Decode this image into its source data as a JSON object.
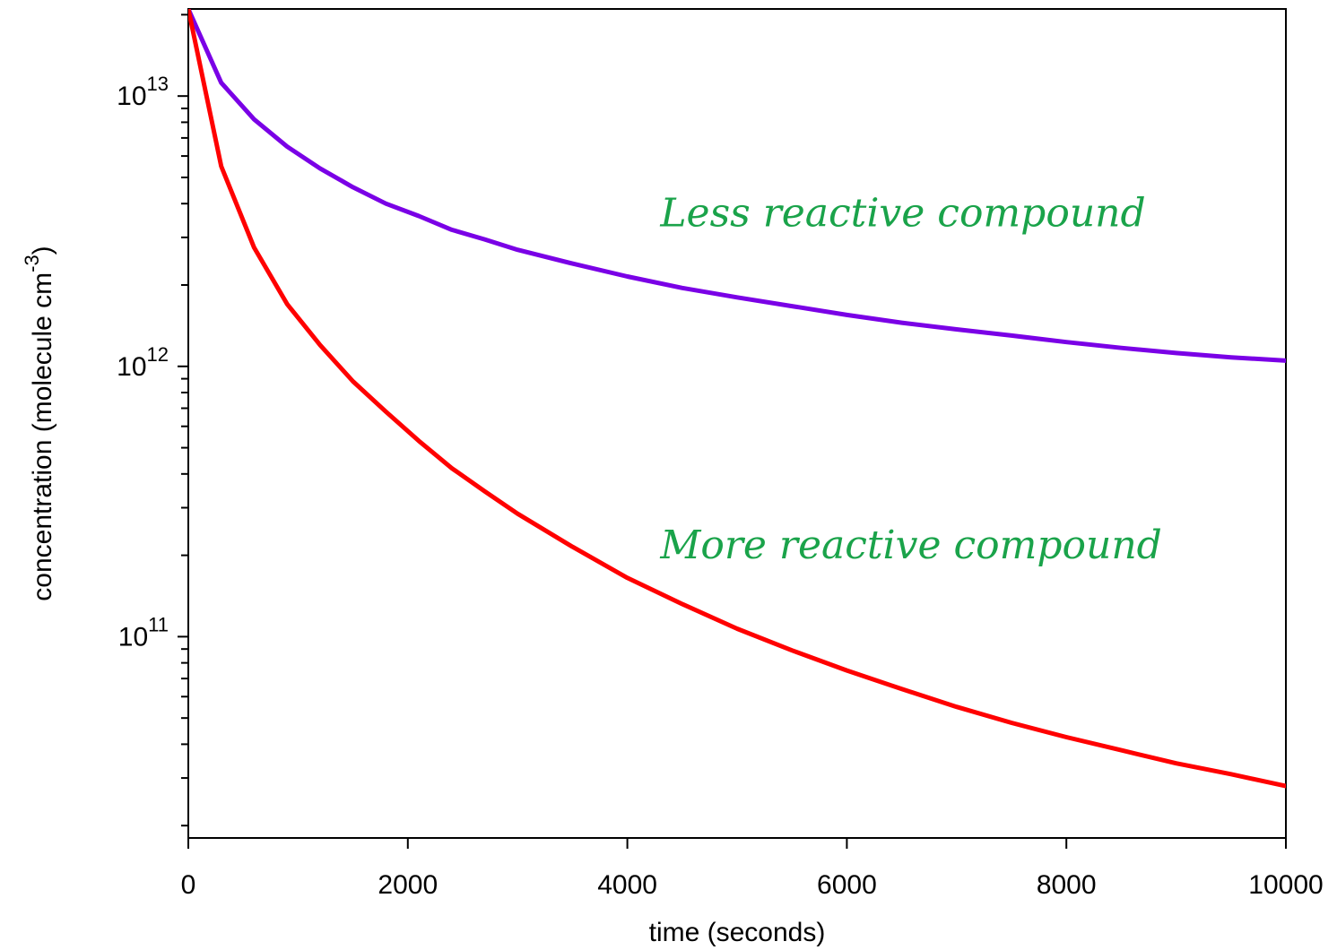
{
  "chart_data": {
    "type": "line",
    "title": "",
    "xlabel": "time (seconds)",
    "ylabel": {
      "text": "concentration (molecule cm",
      "superscript": "-3",
      "suffix": ")"
    },
    "xlim": [
      0,
      10000
    ],
    "ylim": [
      18000000000.0,
      21000000000000.0
    ],
    "y_scale": "log",
    "grid": false,
    "legend": "none",
    "x_ticks": [
      0,
      2000,
      4000,
      6000,
      8000,
      10000
    ],
    "x_tick_labels": [
      "0",
      "2000",
      "4000",
      "6000",
      "8000",
      "10000"
    ],
    "y_major_ticks": [
      {
        "value": 10000000000000.0,
        "base": "10",
        "exponent": "13"
      },
      {
        "value": 1000000000000.0,
        "base": "10",
        "exponent": "12"
      },
      {
        "value": 100000000000.0,
        "base": "10",
        "exponent": "11"
      }
    ],
    "series": [
      {
        "color": "#7a00e6",
        "x": [
          0,
          300,
          600,
          900,
          1200,
          1500,
          1800,
          2100,
          2400,
          2700,
          3000,
          3500,
          4000,
          4500,
          5000,
          5500,
          6000,
          6500,
          7000,
          7500,
          8000,
          8500,
          9000,
          9500,
          10000
        ],
        "y": [
          21000000000000.0,
          11200000000000.0,
          8200000000000.0,
          6500000000000.0,
          5400000000000.0,
          4600000000000.0,
          4000000000000.0,
          3600000000000.0,
          3200000000000.0,
          2950000000000.0,
          2700000000000.0,
          2400000000000.0,
          2150000000000.0,
          1950000000000.0,
          1800000000000.0,
          1670000000000.0,
          1550000000000.0,
          1450000000000.0,
          1370000000000.0,
          1300000000000.0,
          1230000000000.0,
          1170000000000.0,
          1120000000000.0,
          1080000000000.0,
          1050000000000.0
        ]
      },
      {
        "color": "#ff0000",
        "x": [
          0,
          300,
          600,
          900,
          1200,
          1500,
          1800,
          2100,
          2400,
          2700,
          3000,
          3500,
          4000,
          4500,
          5000,
          5500,
          6000,
          6500,
          7000,
          7500,
          8000,
          8500,
          9000,
          9500,
          10000
        ],
        "y": [
          21000000000000.0,
          5500000000000.0,
          2750000000000.0,
          1700000000000.0,
          1200000000000.0,
          880000000000.0,
          680000000000.0,
          530000000000.0,
          420000000000.0,
          345000000000.0,
          285000000000.0,
          215000000000.0,
          165000000000.0,
          132000000000.0,
          107000000000.0,
          89000000000.0,
          75000000000.0,
          64000000000.0,
          55000000000.0,
          48000000000.0,
          42500000000.0,
          38000000000.0,
          34000000000.0,
          31000000000.0,
          28000000000.0
        ]
      }
    ],
    "annotations": [
      {
        "text": "Less reactive compound",
        "x": 4300,
        "y": 3300000000000.0,
        "color": "#1aa34a"
      },
      {
        "text": "More reactive compound",
        "x": 4300,
        "y": 195000000000.0,
        "color": "#1aa34a"
      }
    ]
  }
}
